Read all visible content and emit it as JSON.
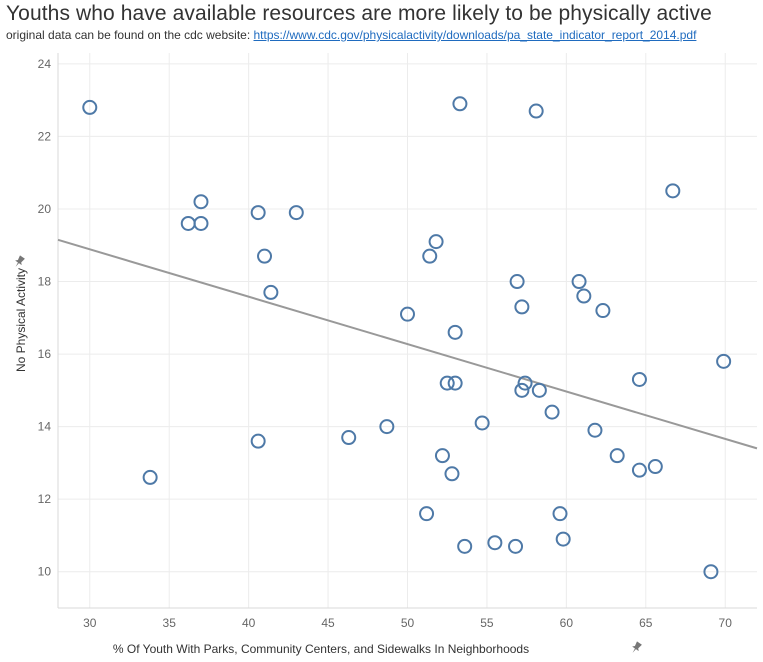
{
  "chart_data": {
    "type": "scatter",
    "title": "Youths who have available resources are more likely to be physically active",
    "subtitle_prefix": "original data can be found on the cdc website: ",
    "subtitle_link": "https://www.cdc.gov/physicalactivity/downloads/pa_state_indicator_report_2014.pdf",
    "xlabel": "% Of Youth With Parks, Community Centers, and Sidewalks In Neighborhoods",
    "ylabel": "No Physical Activity",
    "xlim": [
      28,
      72
    ],
    "ylim": [
      9,
      24.3
    ],
    "xticks": [
      30,
      35,
      40,
      45,
      50,
      55,
      60,
      65,
      70
    ],
    "yticks": [
      10,
      12,
      14,
      16,
      18,
      20,
      22,
      24
    ],
    "grid": true,
    "marker_color": "#4e79a7",
    "trend_color": "#999999",
    "trendline": {
      "x": [
        28,
        72
      ],
      "y": [
        19.15,
        13.4
      ]
    },
    "points": [
      {
        "x": 30.0,
        "y": 22.8
      },
      {
        "x": 33.8,
        "y": 12.6
      },
      {
        "x": 36.2,
        "y": 19.6
      },
      {
        "x": 37.0,
        "y": 20.2
      },
      {
        "x": 37.0,
        "y": 19.6
      },
      {
        "x": 40.6,
        "y": 19.9
      },
      {
        "x": 40.6,
        "y": 13.6
      },
      {
        "x": 41.0,
        "y": 18.7
      },
      {
        "x": 41.4,
        "y": 17.7
      },
      {
        "x": 43.0,
        "y": 19.9
      },
      {
        "x": 46.3,
        "y": 13.7
      },
      {
        "x": 48.7,
        "y": 14.0
      },
      {
        "x": 50.0,
        "y": 17.1
      },
      {
        "x": 51.2,
        "y": 11.6
      },
      {
        "x": 51.4,
        "y": 18.7
      },
      {
        "x": 51.8,
        "y": 19.1
      },
      {
        "x": 52.2,
        "y": 13.2
      },
      {
        "x": 52.5,
        "y": 15.2
      },
      {
        "x": 52.8,
        "y": 12.7
      },
      {
        "x": 53.0,
        "y": 16.6
      },
      {
        "x": 53.0,
        "y": 15.2
      },
      {
        "x": 53.3,
        "y": 22.9
      },
      {
        "x": 53.6,
        "y": 10.7
      },
      {
        "x": 54.7,
        "y": 14.1
      },
      {
        "x": 55.5,
        "y": 10.8
      },
      {
        "x": 56.8,
        "y": 10.7
      },
      {
        "x": 56.9,
        "y": 18.0
      },
      {
        "x": 57.2,
        "y": 17.3
      },
      {
        "x": 57.2,
        "y": 15.0
      },
      {
        "x": 57.4,
        "y": 15.2
      },
      {
        "x": 58.1,
        "y": 22.7
      },
      {
        "x": 58.3,
        "y": 15.0
      },
      {
        "x": 59.1,
        "y": 14.4
      },
      {
        "x": 59.6,
        "y": 11.6
      },
      {
        "x": 59.8,
        "y": 10.9
      },
      {
        "x": 60.8,
        "y": 18.0
      },
      {
        "x": 61.1,
        "y": 17.6
      },
      {
        "x": 61.8,
        "y": 13.9
      },
      {
        "x": 62.3,
        "y": 17.2
      },
      {
        "x": 63.2,
        "y": 13.2
      },
      {
        "x": 64.6,
        "y": 12.8
      },
      {
        "x": 64.6,
        "y": 15.3
      },
      {
        "x": 65.6,
        "y": 12.9
      },
      {
        "x": 66.7,
        "y": 20.5
      },
      {
        "x": 69.1,
        "y": 10.0
      },
      {
        "x": 69.9,
        "y": 15.8
      }
    ]
  }
}
